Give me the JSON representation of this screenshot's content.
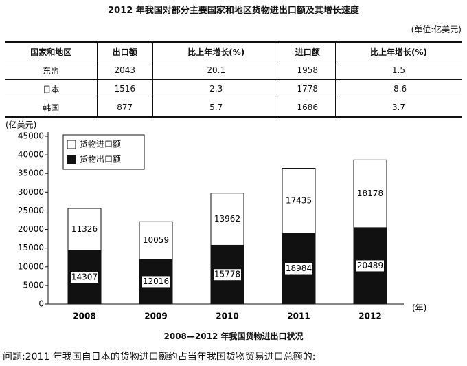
{
  "header": {
    "title": "2012 年我国对部分主要国家和地区货物进出口额及其增长速度",
    "unit": "(单位:亿美元)"
  },
  "table": {
    "header": [
      "国家和地区",
      "出口额",
      "比上年增长(%)",
      "进口额",
      "比上年增长(%)"
    ],
    "rows": [
      [
        "东盟",
        "2043",
        "20.1",
        "1958",
        "1.5"
      ],
      [
        "日本",
        "1516",
        "2.3",
        "1778",
        "-8.6"
      ],
      [
        "韩国",
        "877",
        "5.7",
        "1686",
        "3.7"
      ]
    ]
  },
  "chart_data": {
    "type": "stacked_bar",
    "y_label": "(亿美元)",
    "x_label": "(年)",
    "categories": [
      "2008",
      "2009",
      "2010",
      "2011",
      "2012"
    ],
    "series": [
      {
        "name": "货物出口额",
        "color": "#111111",
        "values": [
          14307,
          12016,
          15778,
          18984,
          20489
        ]
      },
      {
        "name": "货物进口额",
        "color": "#ffffff",
        "values": [
          11326,
          10059,
          13962,
          17435,
          18178
        ]
      }
    ],
    "ylim": [
      0,
      45000
    ],
    "yticks": [
      0,
      5000,
      10000,
      15000,
      20000,
      25000,
      30000,
      35000,
      40000,
      45000
    ],
    "grid": false
  },
  "caption": "2008—2012 年我国货物进出口状况",
  "question": "问题:2011 年我国自日本的货物进口额约占当年我国货物贸易进口总额的:"
}
